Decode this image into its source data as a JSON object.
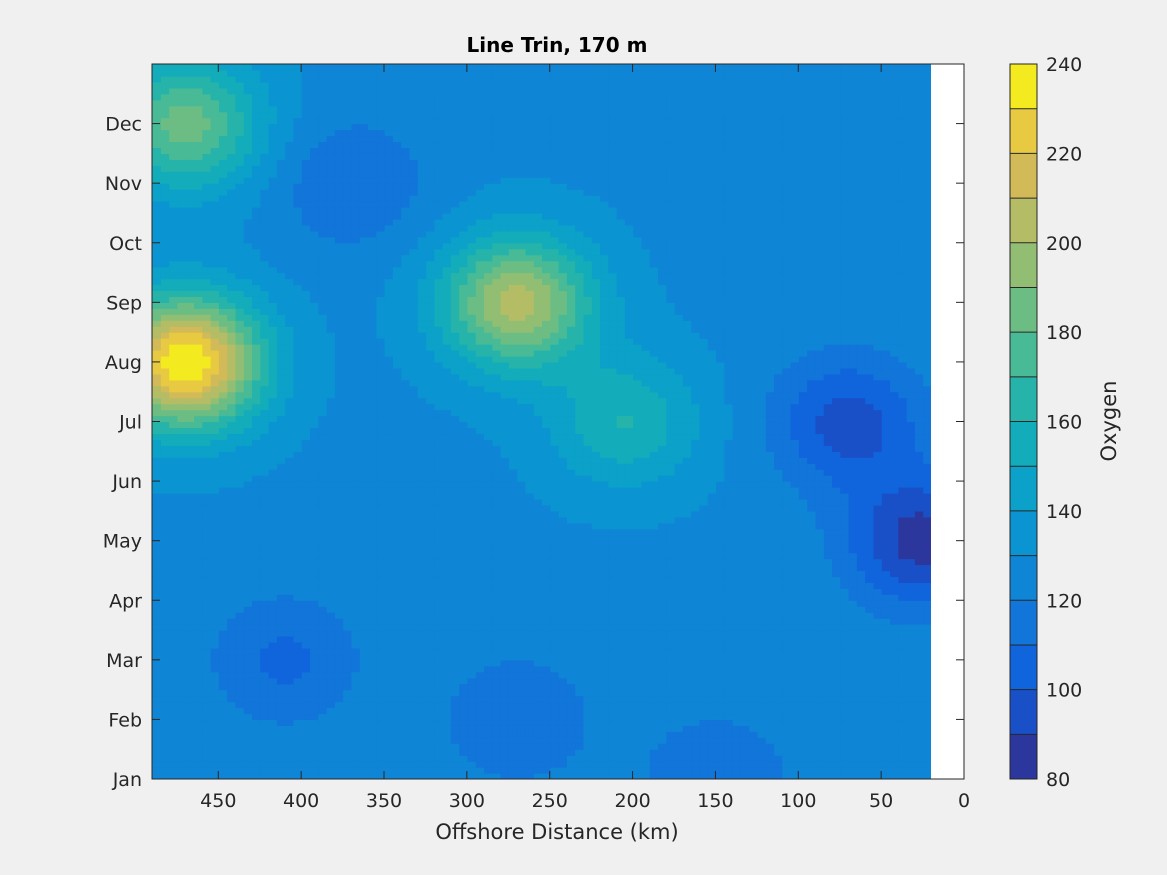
{
  "chart_data": {
    "type": "contourf",
    "title": "Line Trin, 170 m",
    "xlabel": "Offshore Distance (km)",
    "ylabel": "",
    "x_reversed": true,
    "xlim": [
      0,
      490
    ],
    "xticks": [
      450,
      400,
      350,
      300,
      250,
      200,
      150,
      100,
      50,
      0
    ],
    "xtick_labels": [
      "450",
      "400",
      "350",
      "300",
      "250",
      "200",
      "150",
      "100",
      "50",
      "0"
    ],
    "data_x_range": [
      20,
      490
    ],
    "ylim": [
      "Jan",
      "end of Dec"
    ],
    "ytick_labels": [
      "Jan",
      "Feb",
      "Mar",
      "Apr",
      "May",
      "Jun",
      "Jul",
      "Aug",
      "Sep",
      "Oct",
      "Nov",
      "Dec"
    ],
    "colorbar": {
      "label": "Oxygen",
      "clim": [
        80,
        240
      ],
      "ticks": [
        80,
        100,
        120,
        140,
        160,
        180,
        200,
        220,
        240
      ],
      "tick_labels": [
        "80",
        "100",
        "120",
        "140",
        "160",
        "180",
        "200",
        "220",
        "240"
      ],
      "level_step": 10,
      "colormap": "parula"
    },
    "features": [
      {
        "x": 470,
        "month": "Aug",
        "value": 240
      },
      {
        "x": 470,
        "month": "Dec",
        "value": 185
      },
      {
        "x": 270,
        "month": "Sep",
        "value": 205
      },
      {
        "x": 205,
        "month": "Jul",
        "value": 160
      },
      {
        "x": 370,
        "month": "Nov",
        "value": 110
      },
      {
        "x": 410,
        "month": "Mar",
        "value": 108
      },
      {
        "x": 270,
        "month": "Feb",
        "value": 110
      },
      {
        "x": 25,
        "month": "May",
        "value": 85
      },
      {
        "x": 70,
        "month": "Jul",
        "value": 95
      },
      {
        "x": 150,
        "month": "Jan",
        "value": 110
      }
    ]
  }
}
